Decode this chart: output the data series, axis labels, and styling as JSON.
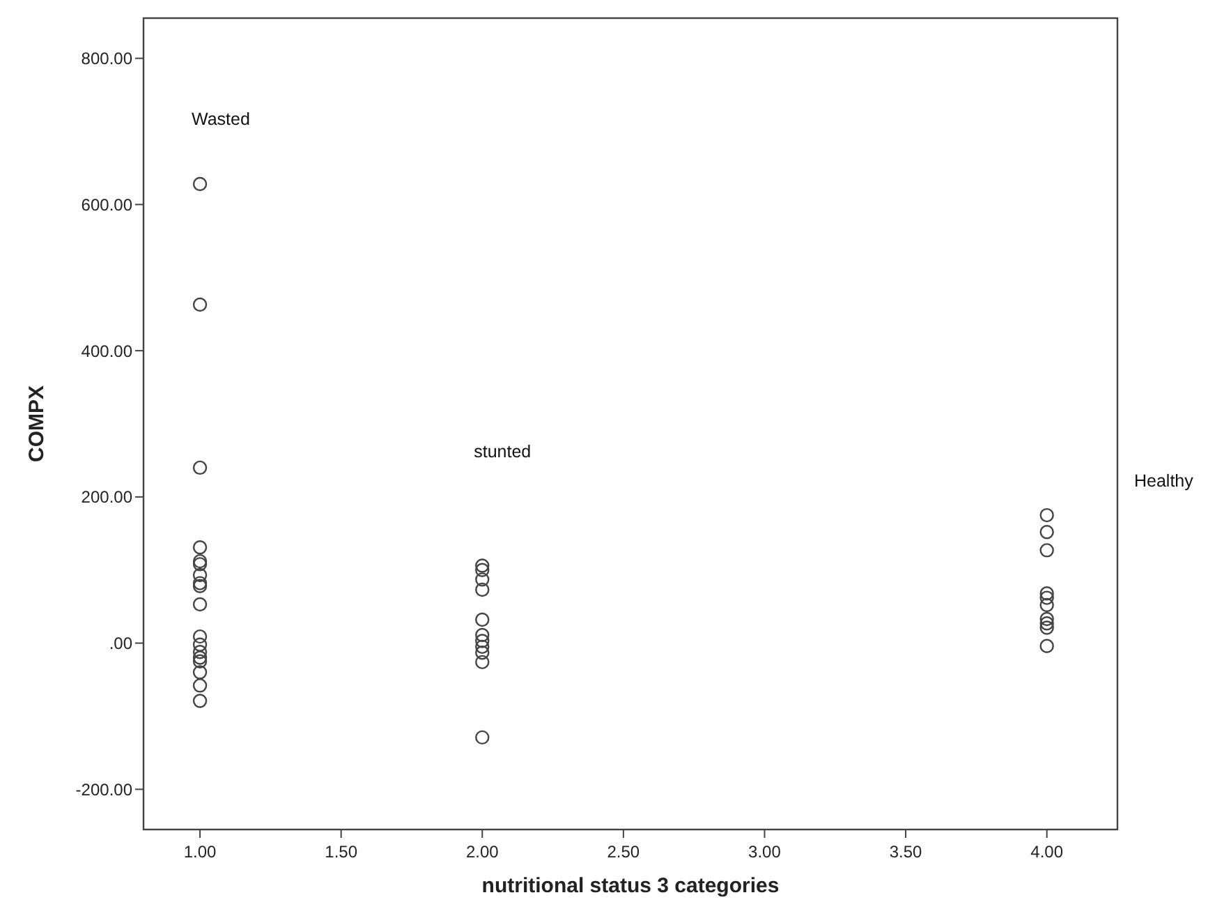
{
  "chart_data": {
    "type": "scatter",
    "xlabel": "nutritional status 3 categories",
    "ylabel": "COMPX",
    "xlim": [
      0.8,
      4.25
    ],
    "ylim": [
      -255,
      855
    ],
    "xticks": [
      {
        "value": 1,
        "label": "1.00"
      },
      {
        "value": 1.5,
        "label": "1.50"
      },
      {
        "value": 2,
        "label": "2.00"
      },
      {
        "value": 2.5,
        "label": "2.50"
      },
      {
        "value": 3,
        "label": "3.00"
      },
      {
        "value": 3.5,
        "label": "3.50"
      },
      {
        "value": 4,
        "label": "4.00"
      }
    ],
    "yticks": [
      {
        "value": -200,
        "label": "-200.00"
      },
      {
        "value": 0,
        "label": ".00"
      },
      {
        "value": 200,
        "label": "200.00"
      },
      {
        "value": 400,
        "label": "400.00"
      },
      {
        "value": 600,
        "label": "600.00"
      },
      {
        "value": 800,
        "label": "800.00"
      }
    ],
    "grid": false,
    "marker": "circle",
    "series": [
      {
        "color": "#444444",
        "x": [
          1,
          1,
          1,
          1,
          1,
          1,
          1,
          1,
          1,
          1,
          1,
          1,
          1,
          1,
          1,
          1,
          1,
          1,
          2,
          2,
          2,
          2,
          2,
          2,
          2,
          2,
          2,
          2,
          2,
          4,
          4,
          4,
          4,
          4,
          4,
          4,
          4,
          4,
          4
        ],
        "values": [
          628,
          463,
          240,
          131,
          112,
          108,
          93,
          82,
          78,
          53,
          9,
          -2,
          -12,
          -20,
          -25,
          -40,
          -58,
          -79,
          106,
          100,
          87,
          73,
          32,
          11,
          3,
          -5,
          -13,
          -26,
          -129,
          175,
          152,
          127,
          68,
          62,
          52,
          33,
          27,
          21,
          -4
        ]
      }
    ],
    "annotations": [
      "Wasted",
      "stunted",
      "Healthy"
    ]
  }
}
